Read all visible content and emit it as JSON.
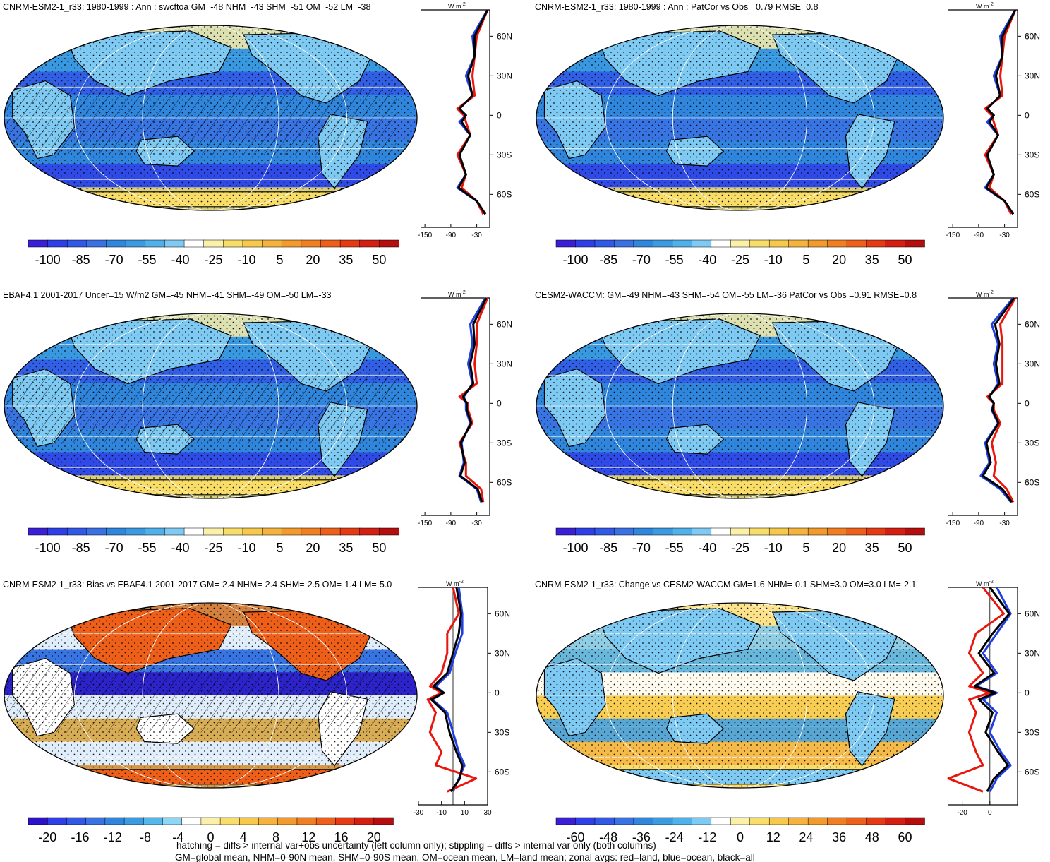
{
  "colors": {
    "ocean": "#1f3fe0",
    "land": "#e8160e",
    "all": "#000000",
    "map_bg": "#2f86dc",
    "palette_main": [
      "#3b1fd6",
      "#2f3fe8",
      "#3158e6",
      "#3a72e4",
      "#2f86dc",
      "#3a9be0",
      "#4fb0ea",
      "#7fcaf2",
      "#ffffff",
      "#fbf0a8",
      "#f8dd68",
      "#f6c94a",
      "#f5b33d",
      "#f39a2c",
      "#f17f22",
      "#ee6019",
      "#e63a14",
      "#d41e12",
      "#b50e0e"
    ],
    "palette_bias": [
      "#2c12c8",
      "#2f3fe8",
      "#3158e6",
      "#3a72e4",
      "#2f86dc",
      "#3a9be0",
      "#53b7ec",
      "#8fd6f5",
      "#ffffff",
      "#fbf0a8",
      "#f8dd68",
      "#f6c94a",
      "#f5b33d",
      "#f39a2c",
      "#f17f22",
      "#ee6019",
      "#e63a14",
      "#d41e12",
      "#b50e0e"
    ]
  },
  "panels": [
    {
      "title": "CNRM-ESM2-1_r33: 1980-1999 : Ann : swcftoa GM=-48 NHM=-43 SHM=-51 OM=-52 LM=-38",
      "colorbar_labels": [
        "-100",
        "-85",
        "-70",
        "-55",
        "-40",
        "-25",
        "-10",
        "5",
        "20",
        "35",
        "50"
      ],
      "zonal_xticks": [
        "-150",
        "-90",
        "-30"
      ],
      "units": "W m",
      "units_exp": "-2",
      "lat_labels": [
        "60N",
        "30N",
        "0",
        "30S",
        "60S"
      ]
    },
    {
      "title": "CNRM-ESM2-1_r33: 1980-1999 : Ann : PatCor vs Obs =0.79 RMSE=0.8",
      "colorbar_labels": [
        "-100",
        "-85",
        "-70",
        "-55",
        "-40",
        "-25",
        "-10",
        "5",
        "20",
        "35",
        "50"
      ],
      "zonal_xticks": [
        "-150",
        "-90",
        "-30"
      ],
      "units": "W m",
      "units_exp": "-2",
      "lat_labels": [
        "60N",
        "30N",
        "0",
        "30S",
        "60S"
      ]
    },
    {
      "title": "EBAF4.1 2001-2017 Uncer=15 W/m2 GM=-45 NHM=-41 SHM=-49 OM=-50 LM=-33",
      "colorbar_labels": [
        "-100",
        "-85",
        "-70",
        "-55",
        "-40",
        "-25",
        "-10",
        "5",
        "20",
        "35",
        "50"
      ],
      "zonal_xticks": [
        "-150",
        "-90",
        "-30"
      ],
      "units": "W m",
      "units_exp": "-2",
      "lat_labels": [
        "60N",
        "30N",
        "0",
        "30S",
        "60S"
      ]
    },
    {
      "title": "CESM2-WACCM: GM=-49 NHM=-43 SHM=-54 OM=-55 LM=-36 PatCor vs Obs =0.91 RMSE=0.8",
      "colorbar_labels": [
        "-100",
        "-85",
        "-70",
        "-55",
        "-40",
        "-25",
        "-10",
        "5",
        "20",
        "35",
        "50"
      ],
      "zonal_xticks": [
        "-150",
        "-90",
        "-30"
      ],
      "units": "W m",
      "units_exp": "-2",
      "lat_labels": [
        "60N",
        "30N",
        "0",
        "30S",
        "60S"
      ]
    },
    {
      "title": "CNRM-ESM2-1_r33: Bias vs EBAF4.1 2001-2017 GM=-2.4 NHM=-2.4 SHM=-2.5 OM=-1.4 LM=-5.0",
      "colorbar_labels": [
        "-20",
        "-16",
        "-12",
        "-8",
        "-4",
        "0",
        "4",
        "8",
        "12",
        "16",
        "20"
      ],
      "zonal_xticks": [
        "-30",
        "-10",
        "10",
        "30"
      ],
      "units": "W m",
      "units_exp": "-2",
      "lat_labels": [
        "60N",
        "30N",
        "0",
        "30S",
        "60S"
      ]
    },
    {
      "title": "CNRM-ESM2-1_r33: Change vs CESM2-WACCM GM=1.6 NHM=-0.1 SHM=3.0 OM=3.0 LM=-2.1",
      "colorbar_labels": [
        "-60",
        "-48",
        "-36",
        "-24",
        "-12",
        "0",
        "12",
        "24",
        "36",
        "48",
        "60"
      ],
      "zonal_xticks": [
        "-20",
        "0"
      ],
      "units": "W m",
      "units_exp": "-2",
      "lat_labels": [
        "60N",
        "30N",
        "0",
        "30S",
        "60S"
      ]
    }
  ],
  "footnote": {
    "line1": "hatching = diffs > internal var+obs uncertainty (left column only); stippling = diffs > internal var only (both columns)",
    "line2": "GM=global mean, NHM=0-90N mean, SHM=0-90S mean, OM=ocean mean, LM=land mean; zonal avgs: red=land, blue=ocean, black=all"
  },
  "chart_data": [
    {
      "type": "heatmap",
      "title": "CNRM-ESM2-1_r33: 1980-1999 : Ann : swcftoa GM=-48 NHM=-43 SHM=-51 OM=-52 LM=-38",
      "colorbar_range": [
        -100,
        50
      ],
      "zonal_profiles": {
        "lat": [
          80,
          60,
          45,
          30,
          15,
          5,
          0,
          -5,
          -15,
          -30,
          -45,
          -55,
          -65,
          -75
        ],
        "ocean": [
          -5,
          -40,
          -35,
          -55,
          -40,
          -70,
          -55,
          -70,
          -45,
          -70,
          -55,
          -75,
          -30,
          -10
        ],
        "land": [
          -5,
          -30,
          -35,
          -40,
          -35,
          -75,
          -60,
          -55,
          -45,
          -75,
          -55,
          -65,
          -30,
          -15
        ],
        "all": [
          -5,
          -35,
          -35,
          -50,
          -40,
          -70,
          -55,
          -65,
          -45,
          -70,
          -55,
          -72,
          -30,
          -10
        ]
      }
    },
    {
      "type": "heatmap",
      "title": "CNRM-ESM2-1_r33: 1980-1999 : Ann : PatCor vs Obs =0.79 RMSE=0.8",
      "colorbar_range": [
        -100,
        50
      ],
      "zonal_profiles": {
        "lat": [
          80,
          60,
          45,
          30,
          15,
          5,
          0,
          -5,
          -15,
          -30,
          -45,
          -55,
          -65,
          -75
        ],
        "ocean": [
          -5,
          -40,
          -35,
          -55,
          -40,
          -70,
          -55,
          -70,
          -45,
          -70,
          -55,
          -75,
          -30,
          -10
        ],
        "land": [
          -5,
          -30,
          -35,
          -40,
          -35,
          -75,
          -60,
          -55,
          -45,
          -75,
          -55,
          -65,
          -30,
          -15
        ],
        "all": [
          -5,
          -35,
          -35,
          -50,
          -40,
          -70,
          -55,
          -65,
          -45,
          -70,
          -55,
          -72,
          -30,
          -10
        ]
      }
    },
    {
      "type": "heatmap",
      "title": "EBAF4.1 2001-2017 Uncer=15 W/m2 GM=-45 NHM=-41 SHM=-49 OM=-50 LM=-33",
      "colorbar_range": [
        -100,
        50
      ],
      "zonal_profiles": {
        "lat": [
          80,
          60,
          45,
          30,
          15,
          5,
          0,
          -5,
          -15,
          -30,
          -45,
          -55,
          -65,
          -75
        ],
        "ocean": [
          -10,
          -45,
          -40,
          -50,
          -40,
          -60,
          -55,
          -55,
          -45,
          -65,
          -60,
          -70,
          -30,
          -20
        ],
        "land": [
          -5,
          -30,
          -30,
          -35,
          -30,
          -70,
          -50,
          -50,
          -40,
          -70,
          -55,
          -55,
          -20,
          -15
        ],
        "all": [
          -8,
          -38,
          -35,
          -45,
          -38,
          -62,
          -53,
          -53,
          -43,
          -67,
          -58,
          -68,
          -28,
          -18
        ]
      }
    },
    {
      "type": "heatmap",
      "title": "CESM2-WACCM: GM=-49 NHM=-43 SHM=-54 OM=-55 LM=-36 PatCor vs Obs =0.91 RMSE=0.8",
      "colorbar_range": [
        -100,
        50
      ],
      "zonal_profiles": {
        "lat": [
          80,
          60,
          45,
          30,
          15,
          5,
          0,
          -5,
          -15,
          -30,
          -45,
          -55,
          -65,
          -75
        ],
        "ocean": [
          -10,
          -60,
          -45,
          -55,
          -45,
          -65,
          -55,
          -60,
          -45,
          -75,
          -65,
          -85,
          -40,
          -15
        ],
        "land": [
          -5,
          -40,
          -35,
          -35,
          -35,
          -70,
          -55,
          -55,
          -40,
          -60,
          -50,
          -55,
          -25,
          -10
        ],
        "all": [
          -8,
          -52,
          -42,
          -50,
          -42,
          -66,
          -55,
          -58,
          -44,
          -72,
          -62,
          -80,
          -35,
          -13
        ]
      }
    },
    {
      "type": "heatmap",
      "title": "CNRM-ESM2-1_r33: Bias vs EBAF4.1 2001-2017 GM=-2.4 NHM=-2.4 SHM=-2.5 OM=-1.4 LM=-5.0",
      "colorbar_range": [
        -20,
        20
      ],
      "zonal_profiles": {
        "lat": [
          80,
          60,
          45,
          30,
          15,
          5,
          0,
          -5,
          -15,
          -30,
          -45,
          -55,
          -65,
          -75
        ],
        "ocean": [
          5,
          8,
          8,
          2,
          -3,
          -15,
          -8,
          -18,
          -5,
          0,
          5,
          10,
          5,
          0
        ],
        "land": [
          0,
          5,
          -5,
          -5,
          -10,
          -20,
          -10,
          -22,
          -15,
          -20,
          -10,
          -15,
          20,
          -5
        ],
        "all": [
          3,
          7,
          5,
          0,
          -5,
          -17,
          -8,
          -19,
          -7,
          -3,
          3,
          8,
          6,
          -2
        ]
      }
    },
    {
      "type": "heatmap",
      "title": "CNRM-ESM2-1_r33: Change vs CESM2-WACCM GM=1.6 NHM=-0.1 SHM=3.0 OM=3.0 LM=-2.1",
      "colorbar_range": [
        -60,
        60
      ],
      "zonal_profiles": {
        "lat": [
          80,
          60,
          45,
          30,
          15,
          5,
          0,
          -5,
          -15,
          -30,
          -45,
          -55,
          -65,
          -75
        ],
        "ocean": [
          5,
          15,
          5,
          -5,
          5,
          -10,
          5,
          -5,
          5,
          0,
          8,
          15,
          5,
          0
        ],
        "land": [
          -5,
          10,
          -10,
          -15,
          -5,
          -15,
          0,
          -15,
          -10,
          -15,
          -10,
          -5,
          -30,
          -5
        ],
        "all": [
          0,
          14,
          2,
          -8,
          3,
          -11,
          4,
          -8,
          2,
          -3,
          6,
          13,
          3,
          -2
        ]
      }
    }
  ]
}
